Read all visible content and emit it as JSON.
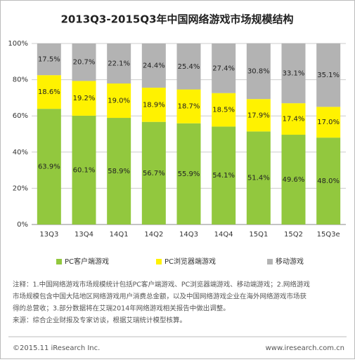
{
  "chart_data": {
    "type": "stacked-bar",
    "title": "2013Q3-2015Q3年中国网络游戏市场规模结构",
    "categories": [
      "13Q3",
      "13Q4",
      "14Q1",
      "14Q2",
      "14Q3",
      "14Q4",
      "15Q1",
      "15Q2",
      "15Q3e"
    ],
    "series": [
      {
        "name": "PC客户端游戏",
        "color": "#92c83e",
        "values": [
          63.9,
          60.1,
          58.9,
          56.7,
          55.9,
          54.1,
          51.4,
          49.6,
          48.0
        ],
        "value_labels": [
          "63.9%",
          "60.1%",
          "58.9%",
          "56.7%",
          "55.9%",
          "54.1%",
          "51.4%",
          "49.6%",
          "48.0%"
        ]
      },
      {
        "name": "PC浏览器端游戏",
        "color": "#fff200",
        "values": [
          18.6,
          19.2,
          19.0,
          18.9,
          18.7,
          18.5,
          17.9,
          17.4,
          17.0
        ],
        "value_labels": [
          "18.6%",
          "19.2%",
          "19.0%",
          "18.9%",
          "18.7%",
          "18.5%",
          "17.9%",
          "17.4%",
          "17.0%"
        ]
      },
      {
        "name": "移动游戏",
        "color": "#b3b3b3",
        "values": [
          17.5,
          20.7,
          22.1,
          24.4,
          25.4,
          27.4,
          30.8,
          33.1,
          35.1
        ],
        "value_labels": [
          "17.5%",
          "20.7%",
          "22.1%",
          "24.4%",
          "25.4%",
          "27.4%",
          "30.8%",
          "33.1%",
          "35.1%"
        ]
      }
    ],
    "ylim": [
      0,
      100
    ],
    "yticks": [
      {
        "value": 0,
        "label": "0%"
      },
      {
        "value": 20,
        "label": "20%"
      },
      {
        "value": 40,
        "label": "40%"
      },
      {
        "value": 60,
        "label": "60%"
      },
      {
        "value": 80,
        "label": "80%"
      },
      {
        "value": 100,
        "label": "100%"
      }
    ],
    "grid": true,
    "notes": [
      "注释：1.中国网络游戏市场规模统计包括PC客户端游戏、PC浏览器端游戏、移动端游戏；2.网络游戏",
      "市场规模包含中国大陆地区网络游戏用户消费总金额，以及中国网络游戏企业在海外网络游戏市场获",
      "得的总营收；3.部分数据将在艾瑞2014年网络游戏相关报告中做出调整。",
      "来源：综合企业财报及专家访谈，根据艾瑞统计模型核算。"
    ],
    "footer_left": "©2015.11 iResearch Inc.",
    "footer_right": "www.iresearch.com.cn"
  }
}
